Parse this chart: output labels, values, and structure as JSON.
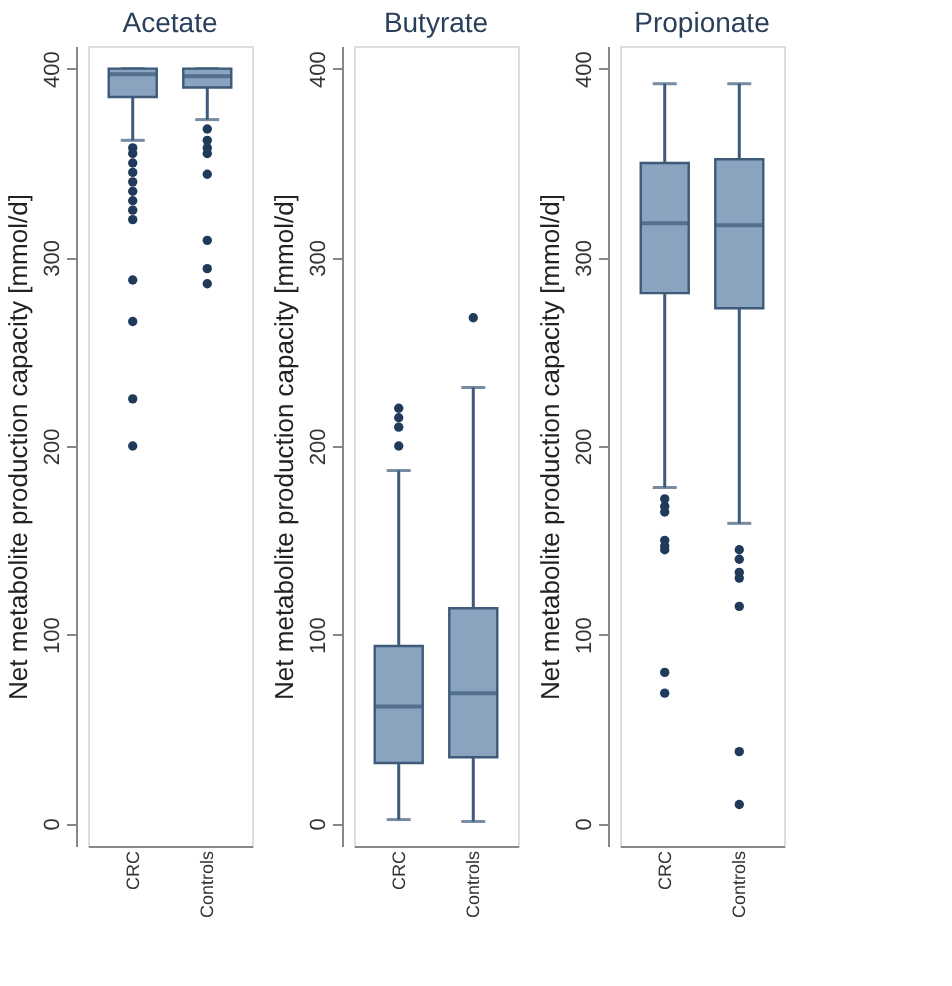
{
  "chart_data": [
    {
      "type": "box",
      "title": "Acetate",
      "ylabel": "Net metabolite production capacity [mmol/d]",
      "categories": [
        "CRC",
        "Controls"
      ],
      "ylim": [
        -12,
        412
      ],
      "yticks": [
        0,
        100,
        200,
        300,
        400
      ],
      "grid": false,
      "series": [
        {
          "color": "#8aa3bf",
          "boxes": [
            {
              "low": 362,
              "q1": 385,
              "median": 397,
              "q3": 400,
              "high": 400,
              "outliers": [
                358,
                355,
                350,
                345,
                340,
                335,
                330,
                325,
                320,
                288,
                266,
                225,
                200
              ]
            },
            {
              "low": 373,
              "q1": 390,
              "median": 396,
              "q3": 400,
              "high": 400,
              "outliers": [
                368,
                362,
                358,
                355,
                344,
                309,
                294,
                286
              ]
            }
          ]
        }
      ]
    },
    {
      "type": "box",
      "title": "Butyrate",
      "ylabel": "Net metabolite production capacity [mmol/d]",
      "categories": [
        "CRC",
        "Controls"
      ],
      "ylim": [
        -12,
        412
      ],
      "yticks": [
        0,
        100,
        200,
        300,
        400
      ],
      "grid": false,
      "series": [
        {
          "color": "#8aa3bf",
          "boxes": [
            {
              "low": 2,
              "q1": 32,
              "median": 62,
              "q3": 94,
              "high": 187,
              "outliers": [
                220,
                215,
                210,
                200
              ]
            },
            {
              "low": 1,
              "q1": 35,
              "median": 69,
              "q3": 114,
              "high": 231,
              "outliers": [
                268
              ]
            }
          ]
        }
      ]
    },
    {
      "type": "box",
      "title": "Propionate",
      "ylabel": "Net metabolite production capacity [mmol/d]",
      "categories": [
        "CRC",
        "Controls"
      ],
      "ylim": [
        -12,
        412
      ],
      "yticks": [
        0,
        100,
        200,
        300,
        400
      ],
      "grid": false,
      "series": [
        {
          "color": "#8aa3bf",
          "boxes": [
            {
              "low": 178,
              "q1": 281,
              "median": 318,
              "q3": 350,
              "high": 392,
              "outliers": [
                172,
                168,
                165,
                150,
                147,
                145,
                80,
                69
              ]
            },
            {
              "low": 159,
              "q1": 273,
              "median": 317,
              "q3": 352,
              "high": 392,
              "outliers": [
                145,
                140,
                133,
                130,
                115,
                38,
                10
              ]
            }
          ]
        }
      ]
    }
  ]
}
